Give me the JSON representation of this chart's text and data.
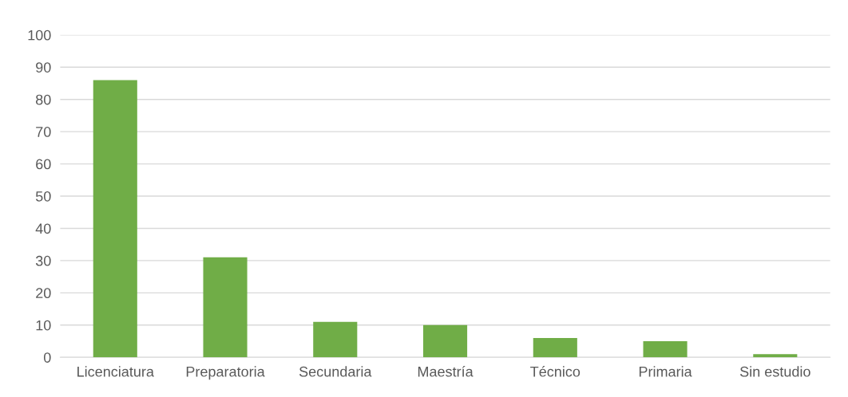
{
  "chart_data": {
    "type": "bar",
    "categories": [
      "Licenciatura",
      "Preparatoria",
      "Secundaria",
      "Maestría",
      "Técnico",
      "Primaria",
      "Sin estudio"
    ],
    "values": [
      86,
      31,
      11,
      10,
      6,
      5,
      1
    ],
    "color": "#70ad47",
    "ylim": [
      0,
      100
    ],
    "yticks": [
      0,
      10,
      20,
      30,
      40,
      50,
      60,
      70,
      80,
      90,
      100
    ],
    "grid": "y",
    "legend": false
  }
}
